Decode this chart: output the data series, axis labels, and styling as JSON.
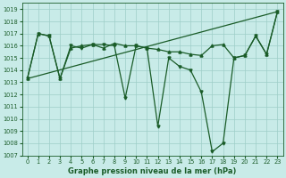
{
  "bg_color": "#c8ebe8",
  "grid_color": "#9ecec8",
  "line_color": "#1a5c28",
  "title": "Graphe pression niveau de la mer (hPa)",
  "xlim": [
    -0.5,
    23.5
  ],
  "ylim": [
    1007,
    1019.5
  ],
  "xticks": [
    0,
    1,
    2,
    3,
    4,
    5,
    6,
    7,
    8,
    9,
    10,
    11,
    12,
    13,
    14,
    15,
    16,
    17,
    18,
    19,
    20,
    21,
    22,
    23
  ],
  "yticks": [
    1007,
    1008,
    1009,
    1010,
    1011,
    1012,
    1013,
    1014,
    1015,
    1016,
    1017,
    1018,
    1019
  ],
  "line1_x": [
    0,
    1,
    2,
    3,
    4,
    5,
    6,
    7,
    8,
    9,
    10,
    11,
    12,
    13,
    14,
    15,
    16,
    17,
    18,
    19,
    20,
    21,
    22,
    23
  ],
  "line1_y": [
    1013.3,
    1017.0,
    1016.8,
    1013.3,
    1016.0,
    1015.8,
    1016.1,
    1016.1,
    1016.0,
    1011.7,
    1016.0,
    1015.8,
    1009.4,
    1015.0,
    1014.3,
    1014.0,
    1012.2,
    1007.3,
    1008.0,
    1015.0,
    1015.2,
    1016.8,
    1015.3,
    1018.8
  ],
  "line2_x": [
    0,
    1,
    2,
    3,
    4,
    5,
    6,
    7,
    8,
    9,
    10,
    11,
    12,
    13,
    14,
    15,
    16,
    17,
    18,
    19,
    20,
    21,
    22,
    23
  ],
  "line2_y": [
    1013.3,
    1017.0,
    1016.8,
    1013.3,
    1015.8,
    1016.0,
    1016.1,
    1015.8,
    1016.2,
    1016.0,
    1016.0,
    1015.8,
    1015.7,
    1015.5,
    1015.5,
    1015.3,
    1015.2,
    1016.0,
    1016.1,
    1015.0,
    1015.2,
    1016.8,
    1015.3,
    1018.8
  ],
  "trend_x": [
    0,
    23
  ],
  "trend_y": [
    1013.3,
    1018.8
  ],
  "title_fontsize": 6,
  "tick_fontsize": 4.8
}
